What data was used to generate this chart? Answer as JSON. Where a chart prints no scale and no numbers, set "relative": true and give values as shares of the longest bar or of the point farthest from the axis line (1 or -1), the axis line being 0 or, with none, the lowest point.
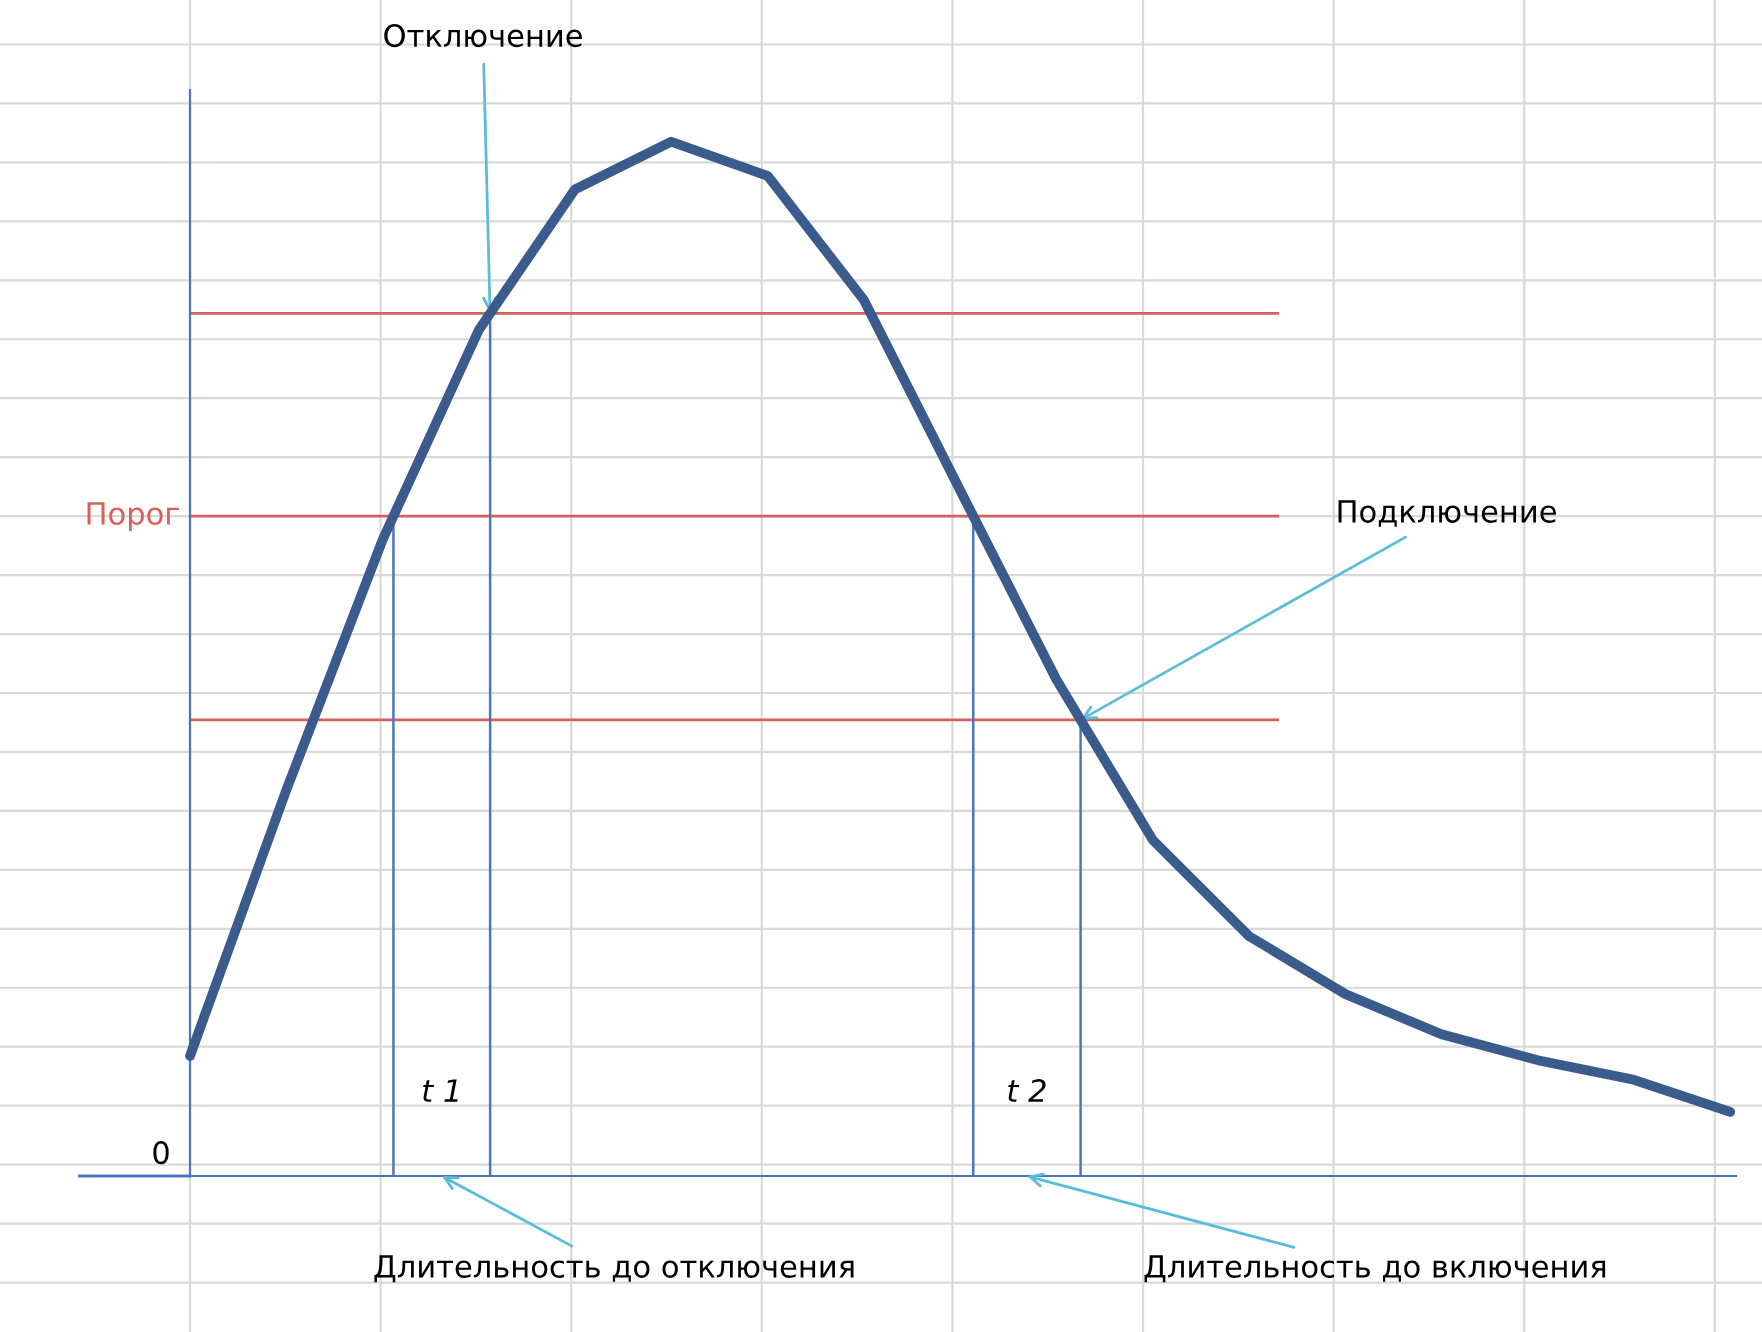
{
  "chart_data": {
    "type": "line",
    "relative": true,
    "grid": true,
    "categories": [
      null,
      null,
      null,
      null,
      null,
      null,
      null,
      null,
      null,
      null,
      null,
      null,
      null,
      null,
      null,
      null,
      null
    ],
    "series": [
      {
        "color": "#3b5b8c",
        "values": [
          0.116,
          0.373,
          0.615,
          0.818,
          0.954,
          1,
          0.967,
          0.847,
          0.663,
          0.48,
          0.325,
          0.232,
          0.176,
          0.137,
          0.112,
          0.093,
          0.062
        ]
      }
    ],
    "ref_lines": [
      {
        "axis": "y",
        "value": 0.834,
        "color": "#d9605a"
      },
      {
        "axis": "y",
        "value": 0.638,
        "label": "Порог",
        "color": "#d9605a"
      },
      {
        "axis": "y",
        "value": 0.441,
        "color": "#d9605a"
      }
    ],
    "annotations": [
      "Отключение",
      "Подключение",
      "Длительность до отключения",
      "Длительность до включения",
      "t 1",
      "t 2",
      "0"
    ]
  }
}
